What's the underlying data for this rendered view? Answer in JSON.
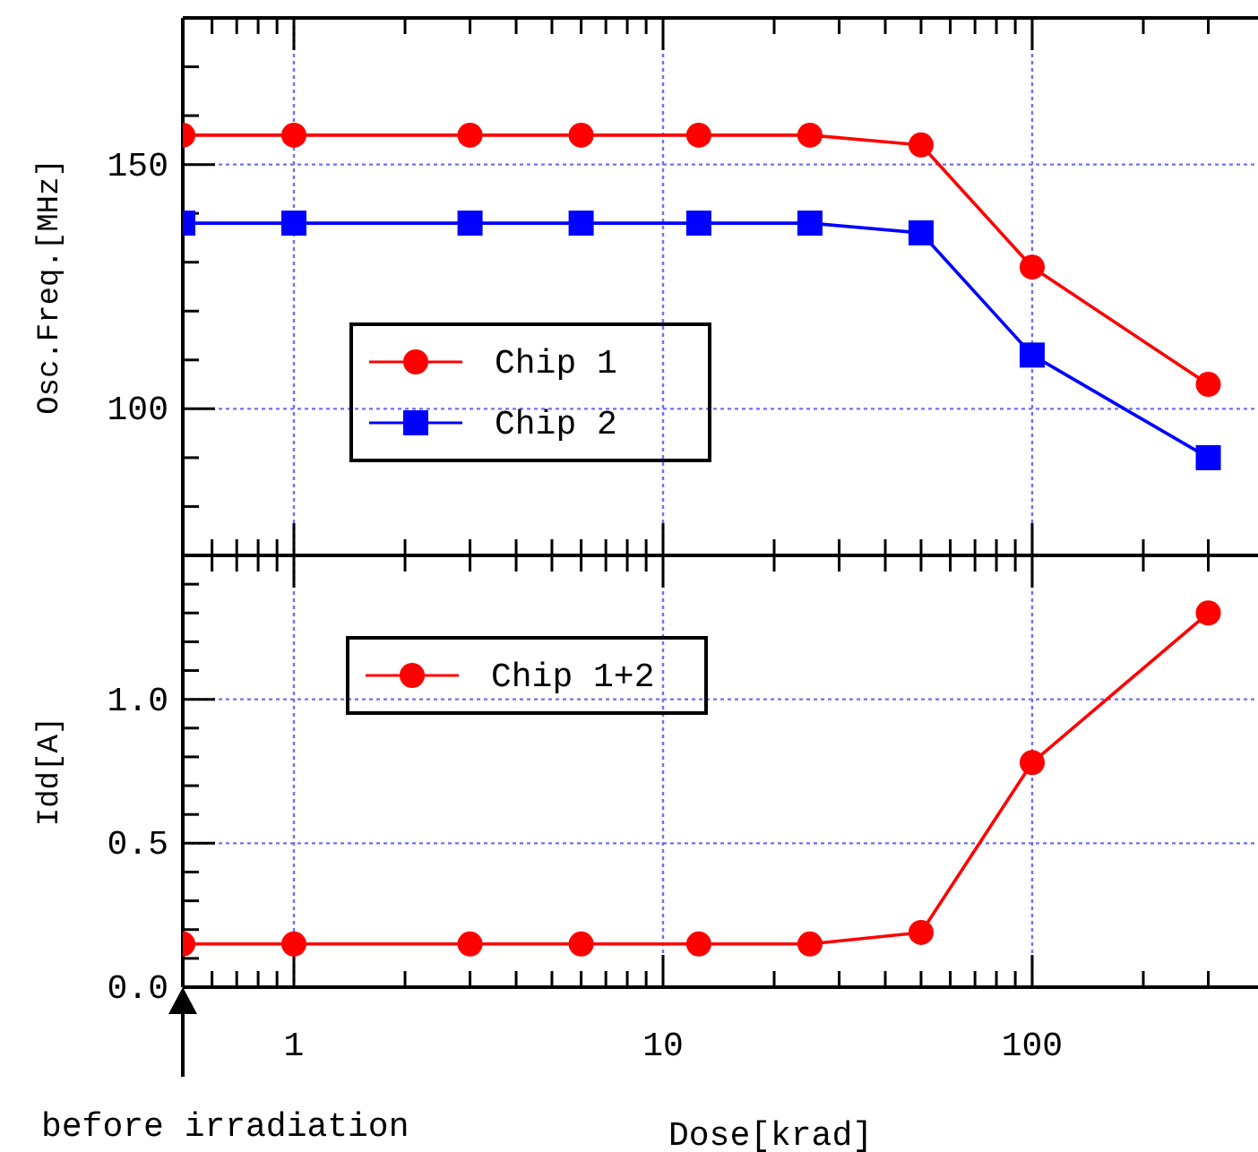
{
  "chart_data": [
    {
      "type": "line",
      "ylabel": "Osc.Freq.[MHz]",
      "x": [
        0.5,
        1,
        3,
        6,
        12.5,
        25,
        50,
        100,
        300
      ],
      "series": [
        {
          "name": "Chip 1",
          "color": "#ff0000",
          "marker": "circle",
          "values": [
            156,
            156,
            156,
            156,
            156,
            156,
            154,
            129,
            105
          ]
        },
        {
          "name": "Chip 2",
          "color": "#0000ff",
          "marker": "square",
          "values": [
            138,
            138,
            138,
            138,
            138,
            138,
            136,
            111,
            90
          ]
        }
      ],
      "log": "x",
      "xlim": [
        0.5,
        400
      ],
      "xticks": [
        {
          "value": 0.6,
          "label": null
        },
        {
          "value": 0.7,
          "label": null
        },
        {
          "value": 0.8,
          "label": null
        },
        {
          "value": 0.9,
          "label": null
        },
        {
          "value": 1,
          "label": null
        },
        {
          "value": 2,
          "label": null
        },
        {
          "value": 3,
          "label": null
        },
        {
          "value": 4,
          "label": null
        },
        {
          "value": 5,
          "label": null
        },
        {
          "value": 6,
          "label": null
        },
        {
          "value": 7,
          "label": null
        },
        {
          "value": 8,
          "label": null
        },
        {
          "value": 9,
          "label": null
        },
        {
          "value": 10,
          "label": null
        },
        {
          "value": 20,
          "label": null
        },
        {
          "value": 30,
          "label": null
        },
        {
          "value": 40,
          "label": null
        },
        {
          "value": 50,
          "label": null
        },
        {
          "value": 60,
          "label": null
        },
        {
          "value": 70,
          "label": null
        },
        {
          "value": 80,
          "label": null
        },
        {
          "value": 90,
          "label": null
        },
        {
          "value": 100,
          "label": null
        },
        {
          "value": 200,
          "label": null
        },
        {
          "value": 300,
          "label": null
        }
      ],
      "ylim": [
        70,
        180
      ],
      "yticks": [
        {
          "value": 80,
          "label": null
        },
        {
          "value": 90,
          "label": null
        },
        100,
        {
          "value": 110,
          "label": null
        },
        {
          "value": 120,
          "label": null
        },
        {
          "value": 130,
          "label": null
        },
        {
          "value": 140,
          "label": null
        },
        150,
        {
          "value": 160,
          "label": null
        },
        {
          "value": 170,
          "label": null
        }
      ],
      "grid": true,
      "legend": "center left",
      "tick_labels": "y",
      "line_style": "solid"
    },
    {
      "type": "line",
      "ylabel": "Idd[A]",
      "xlabel": "Dose[krad]",
      "x": [
        0.5,
        1,
        3,
        6,
        12.5,
        25,
        50,
        100,
        300
      ],
      "series": [
        {
          "name": "Chip 1+2",
          "color": "#ff0000",
          "marker": "circle",
          "values": [
            0.15,
            0.15,
            0.15,
            0.15,
            0.15,
            0.15,
            0.19,
            0.78,
            1.3
          ]
        }
      ],
      "log": "x",
      "xlim": [
        0.5,
        400
      ],
      "xticks": [
        {
          "value": 0.6,
          "label": null
        },
        {
          "value": 0.7,
          "label": null
        },
        {
          "value": 0.8,
          "label": null
        },
        {
          "value": 0.9,
          "label": null
        },
        {
          "value": 1,
          "label": "1"
        },
        {
          "value": 2,
          "label": null
        },
        {
          "value": 3,
          "label": null
        },
        {
          "value": 4,
          "label": null
        },
        {
          "value": 5,
          "label": null
        },
        {
          "value": 6,
          "label": null
        },
        {
          "value": 7,
          "label": null
        },
        {
          "value": 8,
          "label": null
        },
        {
          "value": 9,
          "label": null
        },
        {
          "value": 10,
          "label": "10"
        },
        {
          "value": 20,
          "label": null
        },
        {
          "value": 30,
          "label": null
        },
        {
          "value": 40,
          "label": null
        },
        {
          "value": 50,
          "label": null
        },
        {
          "value": 60,
          "label": null
        },
        {
          "value": 70,
          "label": null
        },
        {
          "value": 80,
          "label": null
        },
        {
          "value": 90,
          "label": null
        },
        {
          "value": 100,
          "label": "100"
        },
        {
          "value": 200,
          "label": null
        },
        {
          "value": 300,
          "label": null
        }
      ],
      "ylim": [
        0,
        1.5
      ],
      "yticks": [
        {
          "value": 0,
          "label": "0.0"
        },
        {
          "value": 0.1,
          "label": null
        },
        {
          "value": 0.2,
          "label": null
        },
        {
          "value": 0.3,
          "label": null
        },
        {
          "value": 0.4,
          "label": null
        },
        {
          "value": 0.5,
          "label": "0.5"
        },
        {
          "value": 0.6,
          "label": null
        },
        {
          "value": 0.7,
          "label": null
        },
        {
          "value": 0.8,
          "label": null
        },
        {
          "value": 0.9,
          "label": null
        },
        {
          "value": 1,
          "label": "1.0"
        },
        {
          "value": 1.1,
          "label": null
        },
        {
          "value": 1.2,
          "label": null
        },
        {
          "value": 1.3,
          "label": null
        },
        {
          "value": 1.4,
          "label": null
        }
      ],
      "grid": true,
      "legend": "top left",
      "line_style": "solid",
      "annotations": [
        "before irradiation"
      ]
    }
  ]
}
